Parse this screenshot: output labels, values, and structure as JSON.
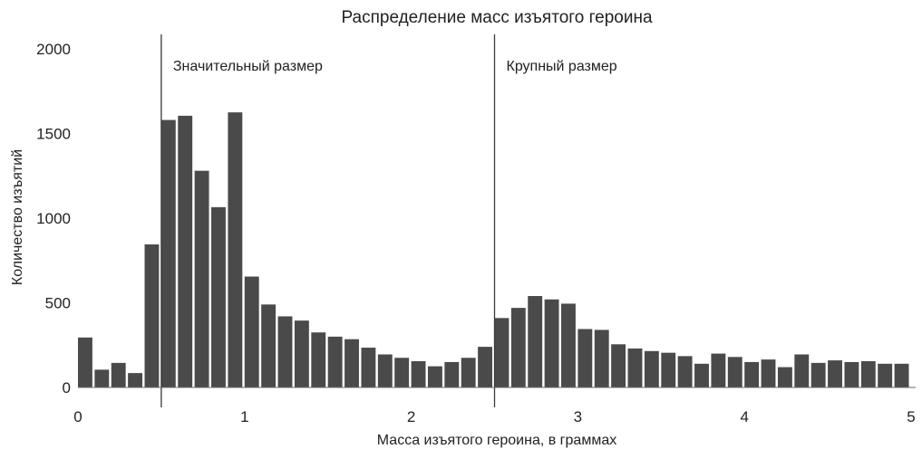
{
  "chart_data": {
    "type": "bar",
    "title": "Распределение масс изъятого героина",
    "xlabel": "Масса изъятого героина, в граммах",
    "ylabel": "Количество изъятий",
    "xlim": [
      0,
      5
    ],
    "ylim": [
      0,
      2000
    ],
    "x_ticks": [
      "0",
      "1",
      "2",
      "3",
      "4",
      "5"
    ],
    "y_ticks": [
      "0",
      "500",
      "1000",
      "1500",
      "2000"
    ],
    "bin_width": 0.1,
    "bin_starts": [
      0.0,
      0.1,
      0.2,
      0.3,
      0.4,
      0.5,
      0.6,
      0.7,
      0.8,
      0.9,
      1.0,
      1.1,
      1.2,
      1.3,
      1.4,
      1.5,
      1.6,
      1.7,
      1.8,
      1.9,
      2.0,
      2.1,
      2.2,
      2.3,
      2.4,
      2.5,
      2.6,
      2.7,
      2.8,
      2.9,
      3.0,
      3.1,
      3.2,
      3.3,
      3.4,
      3.5,
      3.6,
      3.7,
      3.8,
      3.9,
      4.0,
      4.1,
      4.2,
      4.3,
      4.4,
      4.5,
      4.6,
      4.7,
      4.8,
      4.9
    ],
    "values": [
      295,
      105,
      145,
      85,
      845,
      1580,
      1605,
      1280,
      1065,
      1625,
      655,
      490,
      420,
      395,
      325,
      300,
      285,
      235,
      195,
      175,
      155,
      125,
      150,
      175,
      240,
      410,
      470,
      540,
      520,
      495,
      345,
      340,
      255,
      230,
      215,
      205,
      185,
      140,
      200,
      180,
      150,
      165,
      120,
      195,
      145,
      160,
      150,
      155,
      140,
      140
    ],
    "bar_color": "#4a4a4a",
    "grid": false,
    "annotations": [
      {
        "x": 0.5,
        "label": "Значительный размер"
      },
      {
        "x": 2.5,
        "label": "Крупный размер"
      }
    ]
  }
}
